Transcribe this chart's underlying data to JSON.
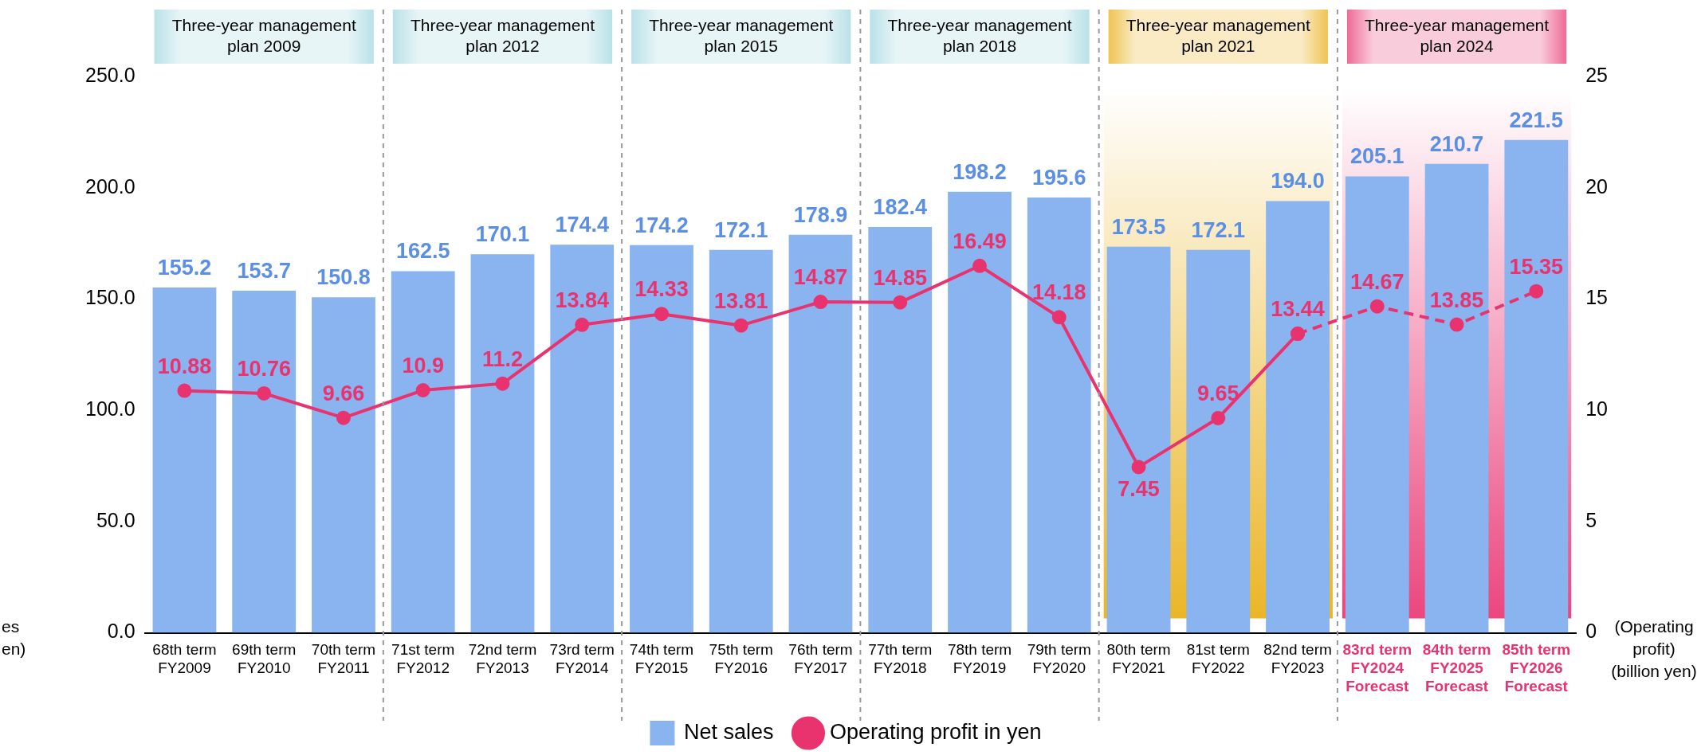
{
  "chart_data": {
    "type": "bar",
    "ylabel": "es\nen)",
    "annotations": [
      "Three-year management\nplan 2009",
      "Three-year management\nplan 2012",
      "Three-year management\nplan 2015",
      "Three-year management\nplan 2018",
      "Three-year management\nplan 2021",
      "Three-year management\nplan 2024"
    ],
    "y2label": "(Operating\nprofit)\n(billion yen)",
    "categories": [
      "68th term\nFY2009",
      "69th term\nFY2010",
      "70th term\nFY2011",
      "71st term\nFY2012",
      "72nd term\nFY2013",
      "73rd term\nFY2014",
      "74th term\nFY2015",
      "75th term\nFY2016",
      "76th term\nFY2017",
      "77th term\nFY2018",
      "78th term\nFY2019",
      "79th term\nFY2020",
      "80th term\nFY2021",
      "81st term\nFY2022",
      "82nd term\nFY2023",
      "83rd term\nFY2024\nForecast",
      "84th term\nFY2025\nForecast",
      "85th term\nFY2026\nForecast"
    ],
    "series": [
      {
        "name": "Net sales",
        "color": "#8ab4f0",
        "values": [
          155.2,
          153.7,
          150.8,
          162.5,
          170.1,
          174.4,
          174.2,
          172.1,
          178.9,
          182.4,
          198.2,
          195.6,
          173.5,
          172.1,
          194.0,
          205.1,
          210.7,
          221.5
        ],
        "value_labels": [
          "155.2",
          "153.7",
          "150.8",
          "162.5",
          "170.1",
          "174.4",
          "174.2",
          "172.1",
          "178.9",
          "182.4",
          "198.2",
          "195.6",
          "173.5",
          "172.1",
          "194.0",
          "205.1",
          "210.7",
          "221.5"
        ]
      },
      {
        "name": "Operating profit in yen",
        "type": "line",
        "axis": "y2",
        "color": "#e8336f",
        "line_style": "solid",
        "values": [
          10.88,
          10.76,
          9.66,
          10.9,
          11.2,
          13.84,
          14.33,
          13.81,
          14.87,
          14.85,
          16.49,
          14.18,
          7.45,
          9.65,
          13.44,
          null,
          null,
          null
        ],
        "value_labels": [
          "10.88",
          "10.76",
          "9.66",
          "10.9",
          "11.2",
          "13.84",
          "14.33",
          "13.81",
          "14.87",
          "14.85",
          "16.49",
          "14.18",
          "7.45",
          "9.65",
          "13.44",
          null,
          null,
          null
        ]
      },
      {
        "type": "line",
        "axis": "y2",
        "color": "#e8336f",
        "line_style": "dashed",
        "values": [
          null,
          null,
          null,
          null,
          null,
          null,
          null,
          null,
          null,
          null,
          null,
          null,
          null,
          null,
          13.44,
          14.67,
          13.85,
          15.35
        ],
        "value_labels": [
          null,
          null,
          null,
          null,
          null,
          null,
          null,
          null,
          null,
          null,
          null,
          null,
          null,
          null,
          null,
          "14.67",
          "13.85",
          "15.35"
        ]
      }
    ],
    "ylim": [
      0,
      250
    ],
    "yticks": [
      {
        "value": 0,
        "label": "0.0"
      },
      {
        "value": 50,
        "label": "50.0"
      },
      {
        "value": 100,
        "label": "100.0"
      },
      {
        "value": 150,
        "label": "150.0"
      },
      {
        "value": 200,
        "label": "200.0"
      },
      {
        "value": 250,
        "label": "250.0"
      }
    ],
    "y2lim": [
      0,
      25
    ],
    "y2ticks": [
      0,
      5,
      10,
      15,
      20,
      25
    ],
    "bands": [
      {
        "axis": "x",
        "from": "80th term\nFY2021",
        "to": "82nd term\nFY2023",
        "color": "#e8ad10"
      },
      {
        "axis": "x",
        "from": "83rd term\nFY2024\nForecast",
        "to": "85th term\nFY2026\nForecast",
        "color": "#e8336f"
      }
    ],
    "grid": false,
    "legend": "bottom",
    "marker": "circle"
  }
}
